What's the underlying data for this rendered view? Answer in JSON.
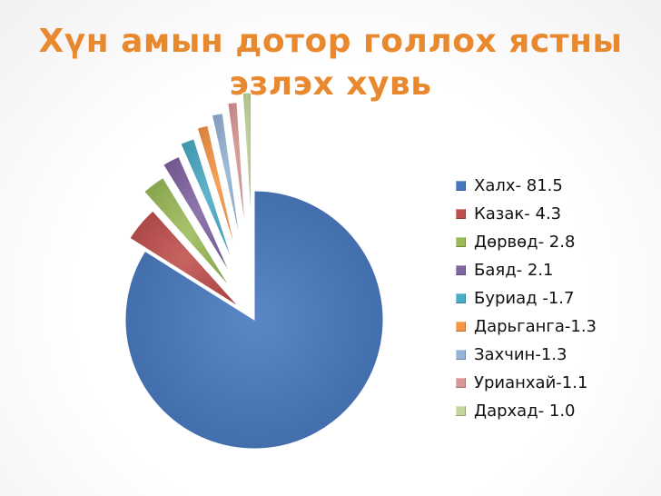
{
  "title_lines": [
    "Хүн амын дотор голлох ястны",
    "эзлэх хувь"
  ],
  "chart_data": {
    "type": "pie",
    "title": "Хүн амын дотор голлох ястны эзлэх хувь",
    "legend_position": "right",
    "exploded": true,
    "categories": [
      "Халх",
      "Казак",
      "Дөрвөд",
      "Баяд",
      "Буриад",
      "Дарьганга",
      "Захчин",
      "Урианхай",
      "Дархад"
    ],
    "values": [
      81.5,
      4.3,
      2.8,
      2.1,
      1.7,
      1.3,
      1.3,
      1.1,
      1.0
    ],
    "legend_labels": [
      "Халх- 81.5",
      "Казак- 4.3",
      "Дөрвөд- 2.8",
      "Баяд- 2.1",
      "Буриад -1.7",
      "Дарьганга-1.3",
      "Захчин-1.3",
      "Урианхай-1.1",
      "Дархад- 1.0"
    ],
    "colors": [
      "#4677be",
      "#c0504d",
      "#9bbb59",
      "#8064a2",
      "#4bacc6",
      "#f79646",
      "#95b3d7",
      "#d99694",
      "#c3d69b"
    ]
  }
}
